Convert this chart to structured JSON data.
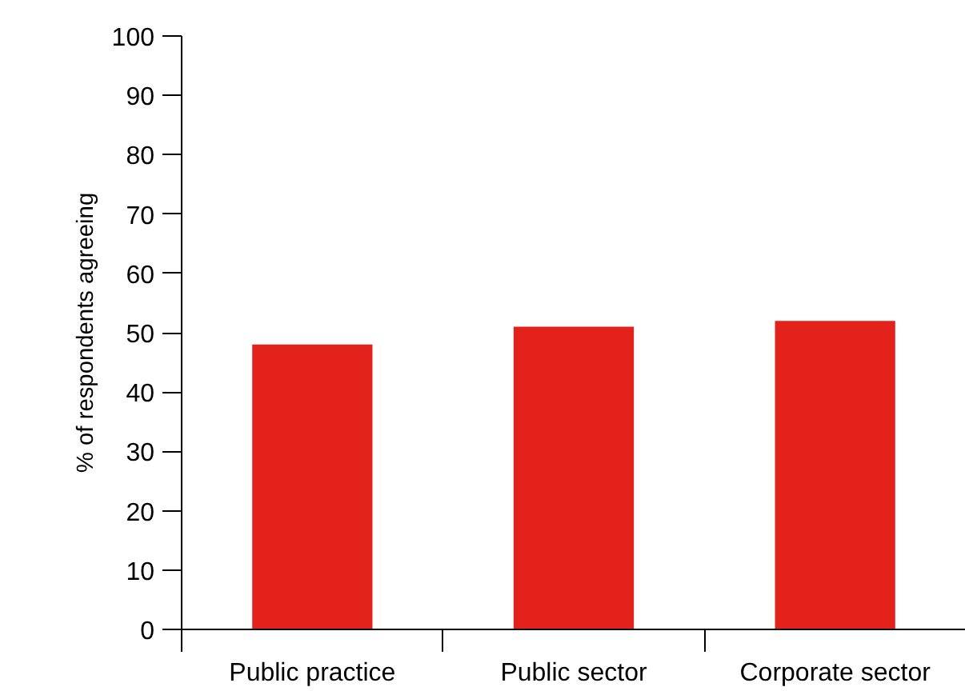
{
  "chart_data": {
    "type": "bar",
    "ylabel": "% of respondents agreeing",
    "categories": [
      "Public practice",
      "Public sector",
      "Corporate sector"
    ],
    "values": [
      48,
      51,
      52
    ],
    "color": "#e3231b",
    "ylim": [
      0,
      100
    ],
    "yticks": [
      0,
      10,
      20,
      30,
      40,
      50,
      60,
      70,
      80,
      90,
      100
    ]
  }
}
